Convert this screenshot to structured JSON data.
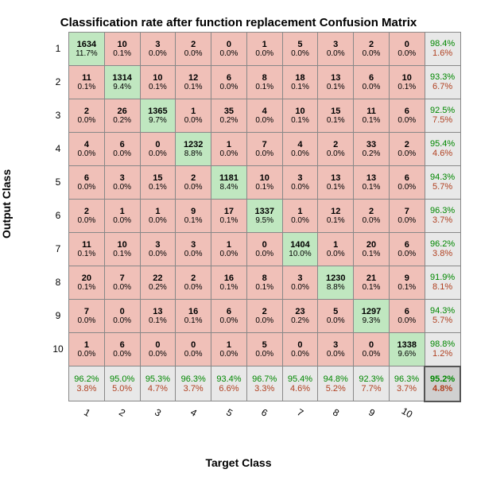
{
  "title": "Classification rate after function replacement Confusion Matrix",
  "ylabel": "Output Class",
  "xlabel": "Target Class",
  "colors": {
    "diag": "#c0e7c0",
    "off": "#f0c0b8",
    "summary": "#e8e8e8",
    "corner": "#d0d0d0",
    "grid": "#888888",
    "good": "#008800",
    "bad": "#b04020"
  },
  "font": {
    "family": "Arial",
    "title_size": 15,
    "label_size": 14,
    "cell_count_size": 11,
    "cell_pct_size": 10
  },
  "nClasses": 10,
  "classLabels": [
    "1",
    "2",
    "3",
    "4",
    "5",
    "6",
    "7",
    "8",
    "9",
    "10"
  ],
  "cells": [
    [
      {
        "c": 1634,
        "p": "11.7%"
      },
      {
        "c": 10,
        "p": "0.1%"
      },
      {
        "c": 3,
        "p": "0.0%"
      },
      {
        "c": 2,
        "p": "0.0%"
      },
      {
        "c": 0,
        "p": "0.0%"
      },
      {
        "c": 1,
        "p": "0.0%"
      },
      {
        "c": 5,
        "p": "0.0%"
      },
      {
        "c": 3,
        "p": "0.0%"
      },
      {
        "c": 2,
        "p": "0.0%"
      },
      {
        "c": 0,
        "p": "0.0%"
      }
    ],
    [
      {
        "c": 11,
        "p": "0.1%"
      },
      {
        "c": 1314,
        "p": "9.4%"
      },
      {
        "c": 10,
        "p": "0.1%"
      },
      {
        "c": 12,
        "p": "0.1%"
      },
      {
        "c": 6,
        "p": "0.0%"
      },
      {
        "c": 8,
        "p": "0.1%"
      },
      {
        "c": 18,
        "p": "0.1%"
      },
      {
        "c": 13,
        "p": "0.1%"
      },
      {
        "c": 6,
        "p": "0.0%"
      },
      {
        "c": 10,
        "p": "0.1%"
      }
    ],
    [
      {
        "c": 2,
        "p": "0.0%"
      },
      {
        "c": 26,
        "p": "0.2%"
      },
      {
        "c": 1365,
        "p": "9.7%"
      },
      {
        "c": 1,
        "p": "0.0%"
      },
      {
        "c": 35,
        "p": "0.2%"
      },
      {
        "c": 4,
        "p": "0.0%"
      },
      {
        "c": 10,
        "p": "0.1%"
      },
      {
        "c": 15,
        "p": "0.1%"
      },
      {
        "c": 11,
        "p": "0.1%"
      },
      {
        "c": 6,
        "p": "0.0%"
      }
    ],
    [
      {
        "c": 4,
        "p": "0.0%"
      },
      {
        "c": 6,
        "p": "0.0%"
      },
      {
        "c": 0,
        "p": "0.0%"
      },
      {
        "c": 1232,
        "p": "8.8%"
      },
      {
        "c": 1,
        "p": "0.0%"
      },
      {
        "c": 7,
        "p": "0.0%"
      },
      {
        "c": 4,
        "p": "0.0%"
      },
      {
        "c": 2,
        "p": "0.0%"
      },
      {
        "c": 33,
        "p": "0.2%"
      },
      {
        "c": 2,
        "p": "0.0%"
      }
    ],
    [
      {
        "c": 6,
        "p": "0.0%"
      },
      {
        "c": 3,
        "p": "0.0%"
      },
      {
        "c": 15,
        "p": "0.1%"
      },
      {
        "c": 2,
        "p": "0.0%"
      },
      {
        "c": 1181,
        "p": "8.4%"
      },
      {
        "c": 10,
        "p": "0.1%"
      },
      {
        "c": 3,
        "p": "0.0%"
      },
      {
        "c": 13,
        "p": "0.1%"
      },
      {
        "c": 13,
        "p": "0.1%"
      },
      {
        "c": 6,
        "p": "0.0%"
      }
    ],
    [
      {
        "c": 2,
        "p": "0.0%"
      },
      {
        "c": 1,
        "p": "0.0%"
      },
      {
        "c": 1,
        "p": "0.0%"
      },
      {
        "c": 9,
        "p": "0.1%"
      },
      {
        "c": 17,
        "p": "0.1%"
      },
      {
        "c": 1337,
        "p": "9.5%"
      },
      {
        "c": 1,
        "p": "0.0%"
      },
      {
        "c": 12,
        "p": "0.1%"
      },
      {
        "c": 2,
        "p": "0.0%"
      },
      {
        "c": 7,
        "p": "0.0%"
      }
    ],
    [
      {
        "c": 11,
        "p": "0.1%"
      },
      {
        "c": 10,
        "p": "0.1%"
      },
      {
        "c": 3,
        "p": "0.0%"
      },
      {
        "c": 3,
        "p": "0.0%"
      },
      {
        "c": 1,
        "p": "0.0%"
      },
      {
        "c": 0,
        "p": "0.0%"
      },
      {
        "c": 1404,
        "p": "10.0%"
      },
      {
        "c": 1,
        "p": "0.0%"
      },
      {
        "c": 20,
        "p": "0.1%"
      },
      {
        "c": 6,
        "p": "0.0%"
      }
    ],
    [
      {
        "c": 20,
        "p": "0.1%"
      },
      {
        "c": 7,
        "p": "0.0%"
      },
      {
        "c": 22,
        "p": "0.2%"
      },
      {
        "c": 2,
        "p": "0.0%"
      },
      {
        "c": 16,
        "p": "0.1%"
      },
      {
        "c": 8,
        "p": "0.1%"
      },
      {
        "c": 3,
        "p": "0.0%"
      },
      {
        "c": 1230,
        "p": "8.8%"
      },
      {
        "c": 21,
        "p": "0.1%"
      },
      {
        "c": 9,
        "p": "0.1%"
      }
    ],
    [
      {
        "c": 7,
        "p": "0.0%"
      },
      {
        "c": 0,
        "p": "0.0%"
      },
      {
        "c": 13,
        "p": "0.1%"
      },
      {
        "c": 16,
        "p": "0.1%"
      },
      {
        "c": 6,
        "p": "0.0%"
      },
      {
        "c": 2,
        "p": "0.0%"
      },
      {
        "c": 23,
        "p": "0.2%"
      },
      {
        "c": 5,
        "p": "0.0%"
      },
      {
        "c": 1297,
        "p": "9.3%"
      },
      {
        "c": 6,
        "p": "0.0%"
      }
    ],
    [
      {
        "c": 1,
        "p": "0.0%"
      },
      {
        "c": 6,
        "p": "0.0%"
      },
      {
        "c": 0,
        "p": "0.0%"
      },
      {
        "c": 0,
        "p": "0.0%"
      },
      {
        "c": 1,
        "p": "0.0%"
      },
      {
        "c": 5,
        "p": "0.0%"
      },
      {
        "c": 0,
        "p": "0.0%"
      },
      {
        "c": 3,
        "p": "0.0%"
      },
      {
        "c": 0,
        "p": "0.0%"
      },
      {
        "c": 1338,
        "p": "9.6%"
      }
    ]
  ],
  "rowSummary": [
    {
      "g": "98.4%",
      "b": "1.6%"
    },
    {
      "g": "93.3%",
      "b": "6.7%"
    },
    {
      "g": "92.5%",
      "b": "7.5%"
    },
    {
      "g": "95.4%",
      "b": "4.6%"
    },
    {
      "g": "94.3%",
      "b": "5.7%"
    },
    {
      "g": "96.3%",
      "b": "3.7%"
    },
    {
      "g": "96.2%",
      "b": "3.8%"
    },
    {
      "g": "91.9%",
      "b": "8.1%"
    },
    {
      "g": "94.3%",
      "b": "5.7%"
    },
    {
      "g": "98.8%",
      "b": "1.2%"
    }
  ],
  "colSummary": [
    {
      "g": "96.2%",
      "b": "3.8%"
    },
    {
      "g": "95.0%",
      "b": "5.0%"
    },
    {
      "g": "95.3%",
      "b": "4.7%"
    },
    {
      "g": "96.3%",
      "b": "3.7%"
    },
    {
      "g": "93.4%",
      "b": "6.6%"
    },
    {
      "g": "96.7%",
      "b": "3.3%"
    },
    {
      "g": "95.4%",
      "b": "4.6%"
    },
    {
      "g": "94.8%",
      "b": "5.2%"
    },
    {
      "g": "92.3%",
      "b": "7.7%"
    },
    {
      "g": "96.3%",
      "b": "3.7%"
    }
  ],
  "overall": {
    "g": "95.2%",
    "b": "4.8%"
  }
}
